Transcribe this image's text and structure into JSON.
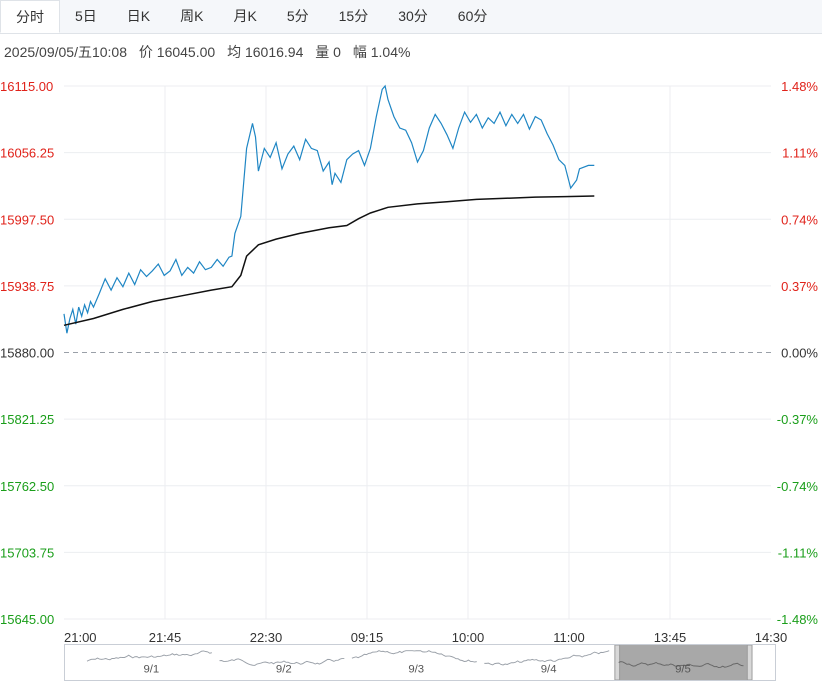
{
  "tabs": [
    {
      "label": "分时",
      "active": true
    },
    {
      "label": "5日",
      "active": false
    },
    {
      "label": "日K",
      "active": false
    },
    {
      "label": "周K",
      "active": false
    },
    {
      "label": "月K",
      "active": false
    },
    {
      "label": "5分",
      "active": false
    },
    {
      "label": "15分",
      "active": false
    },
    {
      "label": "30分",
      "active": false
    },
    {
      "label": "60分",
      "active": false
    }
  ],
  "info": {
    "datetime": "2025/09/05/五10:08",
    "price": "价 16045.00",
    "avg": "均 16016.94",
    "volume": "量 0",
    "change": "幅 1.04%"
  },
  "colors": {
    "up": "#e0221a",
    "down": "#1a9e1a",
    "price_line": "#1f86c4",
    "avg_line": "#111111",
    "grid": "#eceef1"
  },
  "chart_data": {
    "type": "line",
    "base_price": 15880.0,
    "ylim": [
      15645.0,
      16115.0
    ],
    "y_ticks": [
      "16115.00",
      "16056.25",
      "15997.50",
      "15938.75",
      "15880.00",
      "15821.25",
      "15762.50",
      "15703.75",
      "15645.00"
    ],
    "y_ticks_right": [
      "1.48%",
      "1.11%",
      "0.74%",
      "0.37%",
      "0.00%",
      "-0.37%",
      "-0.74%",
      "-1.11%",
      "-1.48%"
    ],
    "x_ticks": [
      "21:00",
      "21:45",
      "22:30",
      "09:15",
      "10:00",
      "11:00",
      "13:45",
      "14:30"
    ],
    "x_slots": 240,
    "series": [
      {
        "key": "price",
        "points": [
          [
            0,
            15914
          ],
          [
            1,
            15897
          ],
          [
            2,
            15910
          ],
          [
            3,
            15918
          ],
          [
            4,
            15905
          ],
          [
            5,
            15920
          ],
          [
            6,
            15912
          ],
          [
            7,
            15922
          ],
          [
            8,
            15915
          ],
          [
            9,
            15925
          ],
          [
            10,
            15920
          ],
          [
            12,
            15932
          ],
          [
            14,
            15945
          ],
          [
            16,
            15935
          ],
          [
            18,
            15946
          ],
          [
            20,
            15938
          ],
          [
            22,
            15950
          ],
          [
            24,
            15940
          ],
          [
            26,
            15953
          ],
          [
            28,
            15947
          ],
          [
            30,
            15952
          ],
          [
            32,
            15958
          ],
          [
            34,
            15948
          ],
          [
            36,
            15952
          ],
          [
            38,
            15962
          ],
          [
            40,
            15948
          ],
          [
            42,
            15955
          ],
          [
            44,
            15950
          ],
          [
            46,
            15960
          ],
          [
            48,
            15953
          ],
          [
            50,
            15955
          ],
          [
            52,
            15962
          ],
          [
            54,
            15956
          ],
          [
            56,
            15964
          ],
          [
            57,
            15965
          ],
          [
            58,
            15985
          ],
          [
            60,
            16000
          ],
          [
            62,
            16060
          ],
          [
            64,
            16082
          ],
          [
            65,
            16070
          ],
          [
            66,
            16040
          ],
          [
            68,
            16060
          ],
          [
            70,
            16052
          ],
          [
            72,
            16065
          ],
          [
            74,
            16042
          ],
          [
            76,
            16055
          ],
          [
            78,
            16062
          ],
          [
            80,
            16050
          ],
          [
            82,
            16068
          ],
          [
            84,
            16060
          ],
          [
            86,
            16058
          ],
          [
            88,
            16040
          ],
          [
            90,
            16048
          ],
          [
            91,
            16028
          ],
          [
            92,
            16038
          ],
          [
            94,
            16030
          ],
          [
            96,
            16050
          ],
          [
            98,
            16055
          ],
          [
            100,
            16058
          ],
          [
            102,
            16045
          ],
          [
            104,
            16060
          ],
          [
            106,
            16088
          ],
          [
            108,
            16112
          ],
          [
            109,
            16115
          ],
          [
            110,
            16103
          ],
          [
            112,
            16088
          ],
          [
            114,
            16078
          ],
          [
            116,
            16076
          ],
          [
            118,
            16065
          ],
          [
            120,
            16048
          ],
          [
            122,
            16058
          ],
          [
            124,
            16078
          ],
          [
            126,
            16090
          ],
          [
            128,
            16082
          ],
          [
            130,
            16072
          ],
          [
            132,
            16060
          ],
          [
            134,
            16078
          ],
          [
            136,
            16092
          ],
          [
            138,
            16083
          ],
          [
            140,
            16090
          ],
          [
            142,
            16078
          ],
          [
            144,
            16087
          ],
          [
            146,
            16082
          ],
          [
            148,
            16092
          ],
          [
            150,
            16080
          ],
          [
            152,
            16090
          ],
          [
            154,
            16082
          ],
          [
            156,
            16090
          ],
          [
            158,
            16077
          ],
          [
            160,
            16088
          ],
          [
            162,
            16085
          ],
          [
            164,
            16073
          ],
          [
            166,
            16063
          ],
          [
            168,
            16050
          ],
          [
            170,
            16045
          ],
          [
            172,
            16025
          ],
          [
            174,
            16032
          ],
          [
            175,
            16042
          ],
          [
            178,
            16045
          ],
          [
            180,
            16045
          ]
        ]
      },
      {
        "key": "avg",
        "points": [
          [
            0,
            15904
          ],
          [
            10,
            15910
          ],
          [
            20,
            15918
          ],
          [
            30,
            15925
          ],
          [
            40,
            15930
          ],
          [
            50,
            15935
          ],
          [
            57,
            15938
          ],
          [
            60,
            15948
          ],
          [
            62,
            15965
          ],
          [
            66,
            15975
          ],
          [
            72,
            15980
          ],
          [
            80,
            15985
          ],
          [
            90,
            15990
          ],
          [
            96,
            15992
          ],
          [
            100,
            15998
          ],
          [
            104,
            16003
          ],
          [
            110,
            16008
          ],
          [
            120,
            16011
          ],
          [
            130,
            16013
          ],
          [
            140,
            16015
          ],
          [
            150,
            16016
          ],
          [
            160,
            16017
          ],
          [
            170,
            16017.5
          ],
          [
            180,
            16018
          ]
        ]
      }
    ]
  },
  "navigator": {
    "labels": [
      "9/1",
      "9/2",
      "9/3",
      "9/4",
      "9/5"
    ]
  }
}
